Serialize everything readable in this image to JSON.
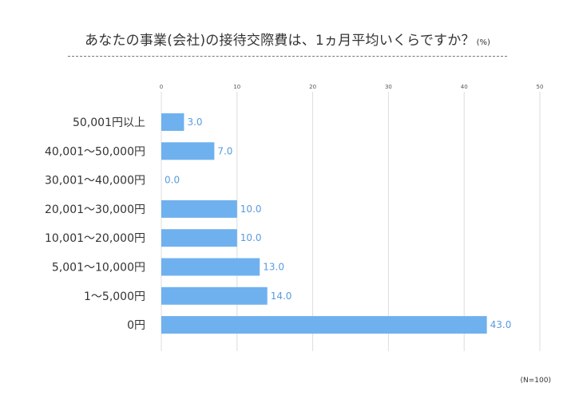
{
  "title": "あなたの事業(会社)の接待交際費は、1ヵ月平均いくらですか？",
  "title_unit": "(%)",
  "note": "(N=100)",
  "chart_data": {
    "type": "bar",
    "orientation": "horizontal",
    "categories": [
      "50,001円以上",
      "40,001〜50,000円",
      "30,001〜40,000円",
      "20,001〜30,000円",
      "10,001〜20,000円",
      "5,001〜10,000円",
      "1〜5,000円",
      "0円"
    ],
    "values": [
      3.0,
      7.0,
      0.0,
      10.0,
      10.0,
      13.0,
      14.0,
      43.0
    ],
    "value_labels": [
      "3.0",
      "7.0",
      "0.0",
      "10.0",
      "10.0",
      "13.0",
      "14.0",
      "43.0"
    ],
    "xlim": [
      0,
      50
    ],
    "xticks": [
      0,
      10,
      20,
      30,
      40,
      50
    ],
    "grid": true,
    "color": "#6fb1ef",
    "label_color": "#5a9be0"
  }
}
